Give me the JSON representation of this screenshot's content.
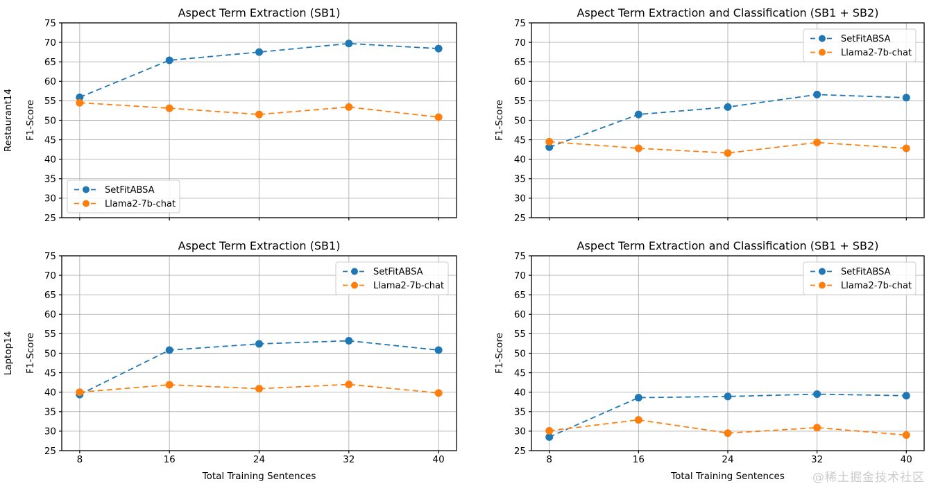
{
  "page": {
    "watermark": "@稀土掘金技术社区"
  },
  "style": {
    "series_blue": "#1f77b4",
    "series_orange": "#ff7f0e",
    "grid_color": "#b0b0b0",
    "spine_color": "#000000",
    "text_color": "#000000",
    "legend_border": "#cccccc",
    "legend_bg": "#ffffff"
  },
  "chart_data": [
    {
      "type": "line",
      "title": "Aspect Term Extraction (SB1)",
      "row_label": "Restaurant14",
      "ylabel": "F1-Score",
      "xlabel": null,
      "show_xtick_labels": false,
      "x": [
        8,
        16,
        24,
        32,
        40
      ],
      "xticks": [
        8,
        16,
        24,
        32,
        40
      ],
      "yticks": [
        25,
        30,
        35,
        40,
        45,
        50,
        55,
        60,
        65,
        70,
        75
      ],
      "xlim": [
        6.4,
        41.6
      ],
      "ylim": [
        25,
        75
      ],
      "grid": true,
      "legend_position": "lower-left",
      "series": [
        {
          "name": "SetFitABSA",
          "color": "#1f77b4",
          "linestyle": "dashed",
          "marker": "circle",
          "values": [
            55.9,
            65.4,
            67.5,
            69.7,
            68.4
          ]
        },
        {
          "name": "Llama2-7b-chat",
          "color": "#ff7f0e",
          "linestyle": "dashed",
          "marker": "circle",
          "values": [
            54.5,
            53.1,
            51.5,
            53.4,
            50.8
          ]
        }
      ]
    },
    {
      "type": "line",
      "title": "Aspect Term Extraction and Classification (SB1 + SB2)",
      "row_label": null,
      "ylabel": "F1-Score",
      "xlabel": null,
      "show_xtick_labels": false,
      "x": [
        8,
        16,
        24,
        32,
        40
      ],
      "xticks": [
        8,
        16,
        24,
        32,
        40
      ],
      "yticks": [
        25,
        30,
        35,
        40,
        45,
        50,
        55,
        60,
        65,
        70,
        75
      ],
      "xlim": [
        6.4,
        41.6
      ],
      "ylim": [
        25,
        75
      ],
      "grid": true,
      "legend_position": "upper-right",
      "series": [
        {
          "name": "SetFitABSA",
          "color": "#1f77b4",
          "linestyle": "dashed",
          "marker": "circle",
          "values": [
            43.1,
            51.5,
            53.4,
            56.6,
            55.8
          ]
        },
        {
          "name": "Llama2-7b-chat",
          "color": "#ff7f0e",
          "linestyle": "dashed",
          "marker": "circle",
          "values": [
            44.5,
            42.8,
            41.6,
            44.3,
            42.8
          ]
        }
      ]
    },
    {
      "type": "line",
      "title": "Aspect Term Extraction (SB1)",
      "row_label": "Laptop14",
      "ylabel": "F1-Score",
      "xlabel": "Total Training Sentences",
      "show_xtick_labels": true,
      "x": [
        8,
        16,
        24,
        32,
        40
      ],
      "xticks": [
        8,
        16,
        24,
        32,
        40
      ],
      "yticks": [
        25,
        30,
        35,
        40,
        45,
        50,
        55,
        60,
        65,
        70,
        75
      ],
      "xlim": [
        6.4,
        41.6
      ],
      "ylim": [
        25,
        75
      ],
      "grid": true,
      "legend_position": "upper-right",
      "series": [
        {
          "name": "SetFitABSA",
          "color": "#1f77b4",
          "linestyle": "dashed",
          "marker": "circle",
          "values": [
            39.4,
            50.8,
            52.4,
            53.2,
            50.8
          ]
        },
        {
          "name": "Llama2-7b-chat",
          "color": "#ff7f0e",
          "linestyle": "dashed",
          "marker": "circle",
          "values": [
            40.0,
            41.9,
            40.9,
            42.0,
            39.8
          ]
        }
      ]
    },
    {
      "type": "line",
      "title": "Aspect Term Extraction and Classification (SB1 + SB2)",
      "row_label": null,
      "ylabel": "F1-Score",
      "xlabel": "Total Training Sentences",
      "show_xtick_labels": true,
      "x": [
        8,
        16,
        24,
        32,
        40
      ],
      "xticks": [
        8,
        16,
        24,
        32,
        40
      ],
      "yticks": [
        25,
        30,
        35,
        40,
        45,
        50,
        55,
        60,
        65,
        70,
        75
      ],
      "xlim": [
        6.4,
        41.6
      ],
      "ylim": [
        25,
        75
      ],
      "grid": true,
      "legend_position": "upper-right",
      "series": [
        {
          "name": "SetFitABSA",
          "color": "#1f77b4",
          "linestyle": "dashed",
          "marker": "circle",
          "values": [
            28.5,
            38.6,
            38.9,
            39.5,
            39.1
          ]
        },
        {
          "name": "Llama2-7b-chat",
          "color": "#ff7f0e",
          "linestyle": "dashed",
          "marker": "circle",
          "values": [
            30.1,
            32.9,
            29.5,
            30.9,
            29.0
          ]
        }
      ]
    }
  ]
}
